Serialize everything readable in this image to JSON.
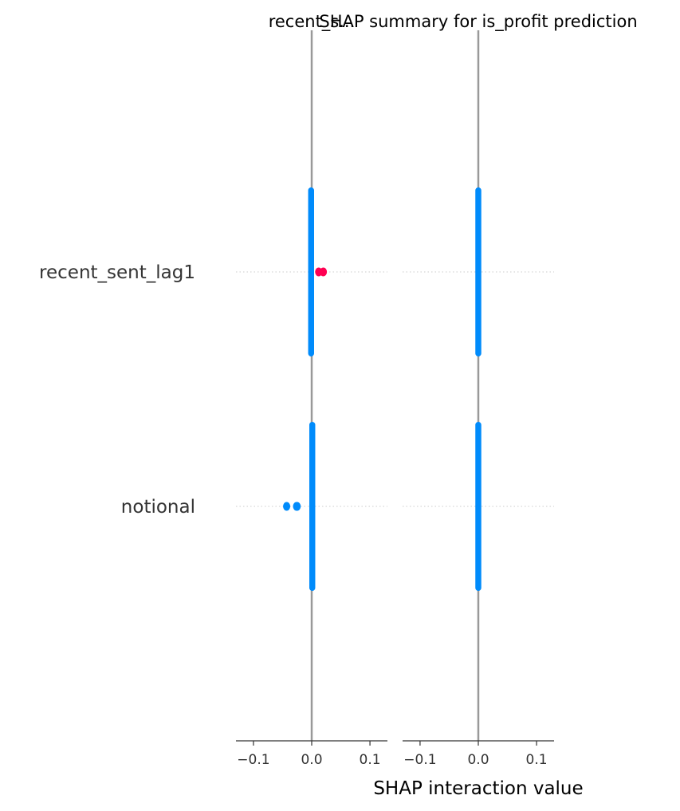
{
  "chart_data": {
    "type": "scatter",
    "title": "SHAP summary for is_profit prediction",
    "xlabel": "SHAP interaction value",
    "features": [
      "recent_sent_lag1",
      "notional"
    ],
    "colors": {
      "low": "#008bfb",
      "high": "#ff0052",
      "zero_line": "#999999",
      "axis": "#333333",
      "row_line": "#cccccc"
    },
    "panels": [
      {
        "title": "recent_s...",
        "xlim": [
          -0.13,
          0.13
        ],
        "ticks": [
          -0.1,
          0.0,
          0.1
        ],
        "tick_labels": [
          "−0.1",
          "0.0",
          "0.1"
        ],
        "series": [
          {
            "feature": "recent_sent_lag1",
            "dense_x": [
              -0.002,
              0.0
            ],
            "spread": 0.36,
            "outliers": [
              {
                "x": 0.012,
                "color": "high"
              },
              {
                "x": 0.02,
                "color": "high"
              }
            ]
          },
          {
            "feature": "notional",
            "dense_x": [
              0.0,
              0.002
            ],
            "spread": 0.36,
            "outliers": [
              {
                "x": -0.043,
                "color": "low"
              },
              {
                "x": -0.025,
                "color": "low"
              },
              {
                "x": -0.026,
                "color": "low"
              }
            ]
          }
        ]
      },
      {
        "title": "",
        "xlim": [
          -0.13,
          0.13
        ],
        "ticks": [
          -0.1,
          0.0,
          0.1
        ],
        "tick_labels": [
          "−0.1",
          "0.0",
          "0.1"
        ],
        "series": [
          {
            "feature": "recent_sent_lag1",
            "dense_x": [
              -0.001,
              0.001
            ],
            "spread": 0.36,
            "outliers": []
          },
          {
            "feature": "notional",
            "dense_x": [
              -0.001,
              0.001
            ],
            "spread": 0.36,
            "outliers": []
          }
        ]
      }
    ]
  }
}
